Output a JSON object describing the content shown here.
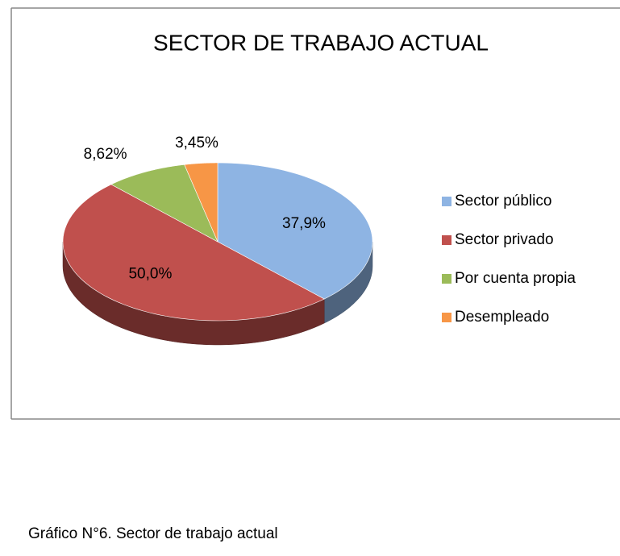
{
  "chart_data": {
    "type": "pie3d",
    "title": "SECTOR DE TRABAJO ACTUAL",
    "categories": [
      "Sector público",
      "Sector privado",
      "Por cuenta propia",
      "Desempleado"
    ],
    "values": [
      37.9,
      50.0,
      8.62,
      3.45
    ],
    "value_labels": [
      "37,9%",
      "50,0%",
      "8,62%",
      "3,45%"
    ],
    "colors": [
      "#8eb4e3",
      "#c0504d",
      "#9bbb59",
      "#f79646"
    ],
    "legend": "right"
  },
  "caption": "Gráfico N°6. Sector de trabajo actual"
}
